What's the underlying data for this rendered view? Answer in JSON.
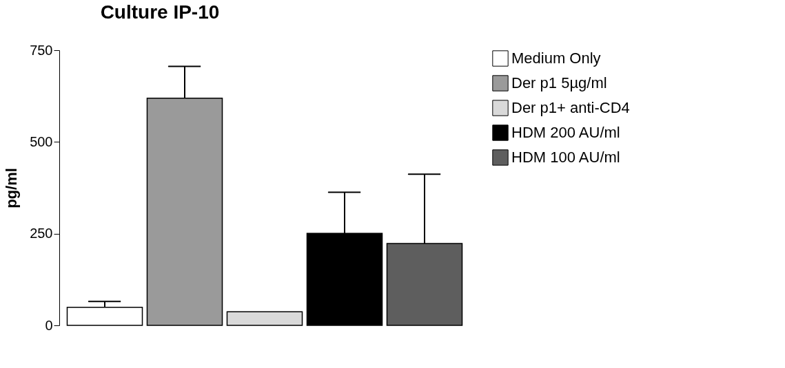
{
  "chart_data": {
    "type": "bar",
    "title": "Culture IP-10",
    "ylabel": "pg/ml",
    "categories": [
      null
    ],
    "series": [
      {
        "name": "Medium Only",
        "color": "#ffffff",
        "values": [
          49
        ],
        "errors": [
          [
            49,
            65
          ]
        ]
      },
      {
        "name": "Der p1 5µg/ml",
        "color": "#9a9a9a",
        "values": [
          619
        ],
        "errors": [
          [
            619,
            706
          ]
        ]
      },
      {
        "name": "Der p1+ anti-CD4",
        "color": "#d9d9d9",
        "values": [
          37
        ],
        "errors": [
          null
        ]
      },
      {
        "name": "HDM 200 AU/ml",
        "color": "#000000",
        "values": [
          251
        ],
        "errors": [
          [
            251,
            363
          ]
        ]
      },
      {
        "name": "HDM 100 AU/ml",
        "color": "#5e5e5e",
        "values": [
          223
        ],
        "errors": [
          [
            223,
            412
          ]
        ]
      }
    ],
    "ylim": [
      0,
      750
    ],
    "yticks": [
      0,
      250,
      500,
      750
    ],
    "grid": false,
    "legend": "top right"
  }
}
